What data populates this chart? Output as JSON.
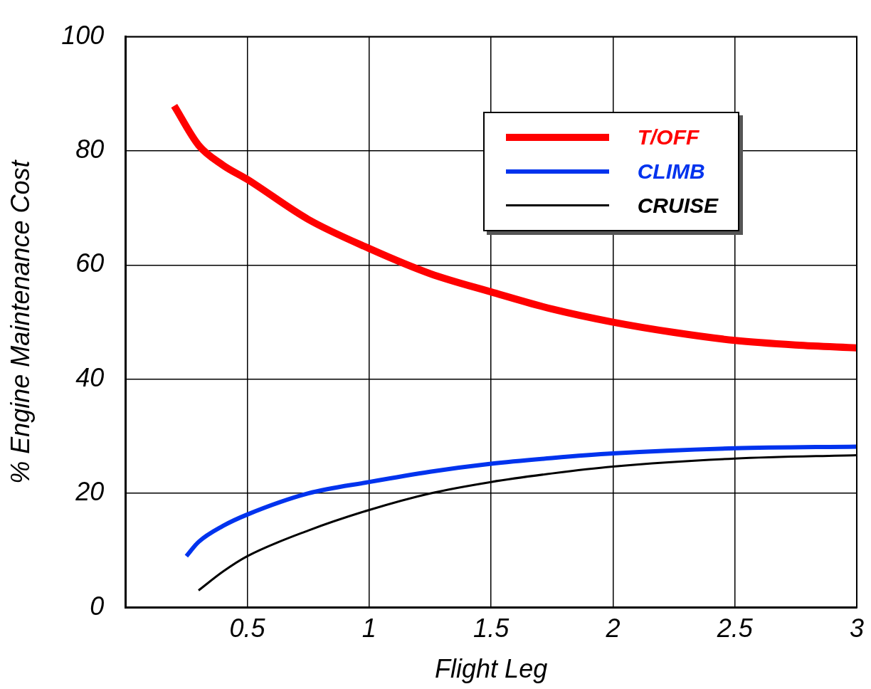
{
  "chart_data": {
    "type": "line",
    "xlabel": "Flight Leg",
    "ylabel": "% Engine Maintenance Cost",
    "xlim": [
      0,
      3
    ],
    "xticks": [
      0.5,
      1,
      1.5,
      2,
      2.5,
      3
    ],
    "ylim": [
      0,
      100
    ],
    "yticks": [
      0,
      20,
      40,
      60,
      80,
      100
    ],
    "grid": true,
    "legend": "top right",
    "marker": "none",
    "line_style": "solid",
    "series": [
      {
        "name": "T/OFF",
        "color": "#ff0000",
        "x": [
          0.2,
          0.3,
          0.4,
          0.5,
          0.75,
          1,
          1.25,
          1.5,
          1.75,
          2,
          2.25,
          2.5,
          2.75,
          3
        ],
        "values": [
          87.9,
          81,
          77.5,
          75,
          68,
          62.9,
          58.5,
          55.3,
          52.3,
          50,
          48.2,
          46.8,
          46,
          45.5
        ]
      },
      {
        "name": "CLIMB",
        "color": "#0033ee",
        "x": [
          0.25,
          0.3,
          0.4,
          0.5,
          0.75,
          1,
          1.25,
          1.5,
          1.75,
          2,
          2.5,
          3
        ],
        "values": [
          9,
          11.5,
          14.3,
          16.3,
          20,
          22,
          23.8,
          25.2,
          26.2,
          27,
          27.9,
          28.2
        ]
      },
      {
        "name": "CRUISE",
        "color": "#000000",
        "x": [
          0.3,
          0.4,
          0.5,
          0.75,
          1,
          1.25,
          1.5,
          1.75,
          2,
          2.5,
          3
        ],
        "values": [
          3,
          6.3,
          9,
          13.5,
          17.1,
          20,
          22,
          23.5,
          24.7,
          26.1,
          26.7
        ]
      }
    ]
  }
}
